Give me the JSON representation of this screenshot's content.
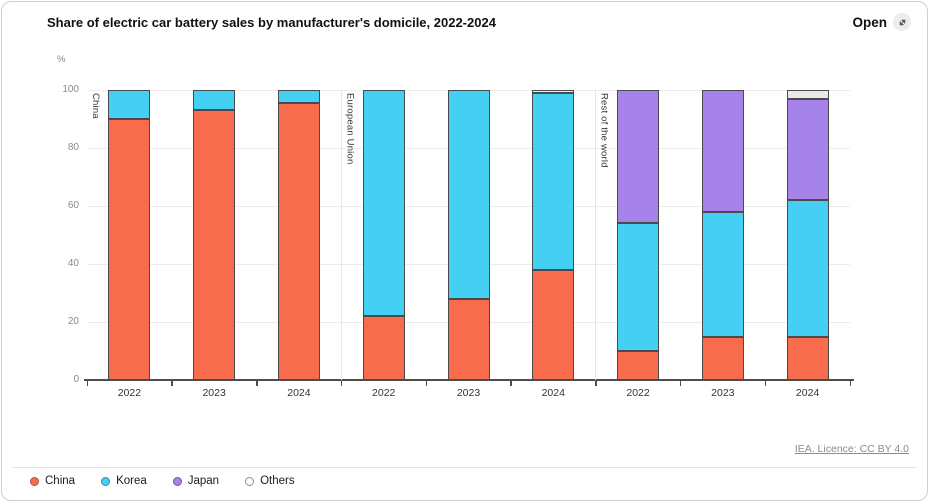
{
  "header": {
    "title": "Share of electric car battery sales by manufacturer's domicile, 2022-2024",
    "open_button": {
      "label": "Open",
      "icon": "expand-diagonal-arrow-icon"
    }
  },
  "footer": {
    "license_link": "IEA. Licence: CC BY 4.0"
  },
  "legend": [
    {
      "label": "China",
      "fill": "#F76C4D",
      "border": "#a8553f"
    },
    {
      "label": "Korea",
      "fill": "#45CFF4",
      "border": "#3d87a8"
    },
    {
      "label": "Japan",
      "fill": "#A583E8",
      "border": "#6f56a8"
    },
    {
      "label": "Others",
      "fill": "#FFFFFF",
      "border": "#8f8f8f"
    }
  ],
  "chart_data": {
    "type": "bar",
    "stacked": true,
    "unit_label": "%",
    "ylim": [
      0,
      100
    ],
    "yticks": [
      0,
      20,
      40,
      60,
      80,
      100
    ],
    "grid": "horizontal",
    "legend_position": "bottom",
    "categories": [
      "2022",
      "2023",
      "2024"
    ],
    "series_names": [
      "China",
      "Korea",
      "Japan",
      "Others"
    ],
    "series_colors": {
      "China": "#F76C4D",
      "Korea": "#45CFF4",
      "Japan": "#A583E8",
      "Others": "#E9E9E9"
    },
    "groups": [
      {
        "label": "China",
        "bars": [
          {
            "category": "2022",
            "values": {
              "China": 90,
              "Korea": 10,
              "Japan": 0,
              "Others": 0
            }
          },
          {
            "category": "2023",
            "values": {
              "China": 93,
              "Korea": 7,
              "Japan": 0,
              "Others": 0
            }
          },
          {
            "category": "2024",
            "values": {
              "China": 95.5,
              "Korea": 4.5,
              "Japan": 0,
              "Others": 0
            }
          }
        ]
      },
      {
        "label": "European Union",
        "bars": [
          {
            "category": "2022",
            "values": {
              "China": 22,
              "Korea": 78,
              "Japan": 0,
              "Others": 0
            }
          },
          {
            "category": "2023",
            "values": {
              "China": 28,
              "Korea": 72,
              "Japan": 0,
              "Others": 0
            }
          },
          {
            "category": "2024",
            "values": {
              "China": 38,
              "Korea": 61,
              "Japan": 0,
              "Others": 1
            }
          }
        ]
      },
      {
        "label": "Rest of the world",
        "bars": [
          {
            "category": "2022",
            "values": {
              "China": 10,
              "Korea": 44,
              "Japan": 46,
              "Others": 0
            }
          },
          {
            "category": "2023",
            "values": {
              "China": 15,
              "Korea": 43,
              "Japan": 42,
              "Others": 0
            }
          },
          {
            "category": "2024",
            "values": {
              "China": 15,
              "Korea": 47,
              "Japan": 35,
              "Others": 3
            }
          }
        ]
      }
    ]
  }
}
